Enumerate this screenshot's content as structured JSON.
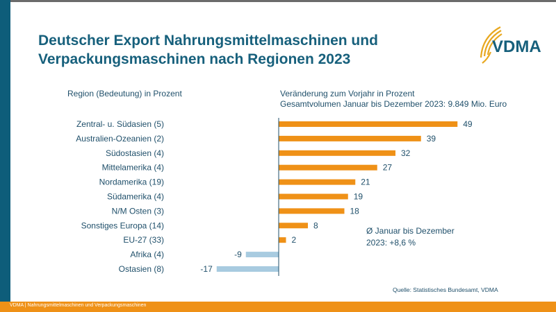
{
  "title_line1": "Deutscher Export Nahrungsmittelmaschinen und",
  "title_line2": "Verpackungsmaschinen nach Regionen 2023",
  "logo_text": "VDMA",
  "colors": {
    "positive": "#ef9117",
    "negative": "#a8cbe0",
    "brand": "#17607c",
    "footer": "#ef9117"
  },
  "footer_text": "VDMA | Nahrungsmittelmaschinen und Verpackungsmaschinen",
  "source": "Quelle: Statistisches Bundesamt, VDMA",
  "chart_data": {
    "type": "bar",
    "orientation": "horizontal",
    "left_header": "Region (Bedeutung) in Prozent",
    "right_header_line1": "Veränderung zum Vorjahr in Prozent",
    "right_header_line2": "Gesamtvolumen Januar bis Dezember 2023: 9.849 Mio. Euro",
    "categories": [
      "Zentral- u. Südasien (5)",
      "Australien-Ozeanien (2)",
      "Südostasien (4)",
      "Mittelamerika (4)",
      "Nordamerika (19)",
      "Südamerika (4)",
      "N/M Osten (3)",
      "Sonstiges Europa (14)",
      "EU-27 (33)",
      "Afrika (4)",
      "Ostasien (8)"
    ],
    "values": [
      49,
      39,
      32,
      27,
      21,
      19,
      18,
      8,
      2,
      -9,
      -17
    ],
    "annotation_line1": "Ø Januar bis Dezember",
    "annotation_line2": "2023: +8,6 %",
    "grid": false
  }
}
